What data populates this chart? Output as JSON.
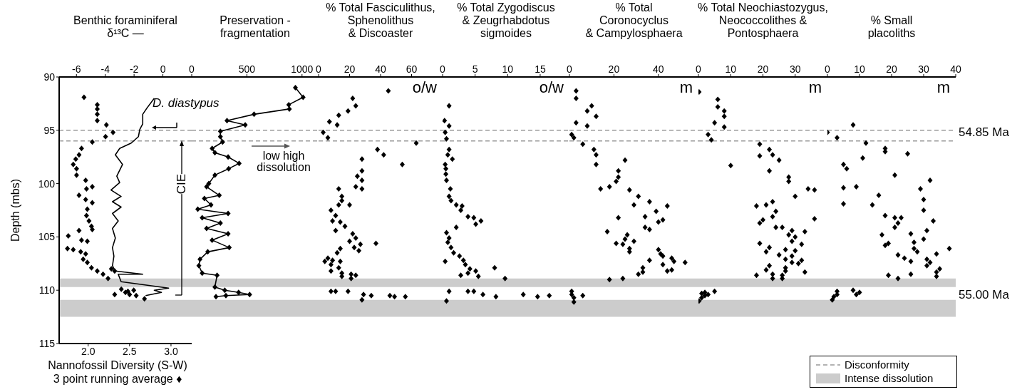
{
  "chart_data": [
    {
      "type": "scatter",
      "x2label": "Benthic foraminiferal\nδ¹³C —",
      "xlabel": "Nannofossil Diversity (S-W)\n3 point running average ♦",
      "ylabel": "Depth (mbs)",
      "xlim": [
        1.65,
        3.25
      ],
      "xticks": [
        {
          "value": 2,
          "label": "2.0"
        },
        {
          "value": 2.5,
          "label": "2.5"
        },
        {
          "value": 3,
          "label": "3.0"
        }
      ],
      "x2lim": [
        -7.2,
        2
      ],
      "x2ticks": [
        -6,
        -4,
        -2,
        0
      ],
      "ylim": [
        115,
        90
      ],
      "yticks": [
        90,
        95,
        100,
        105,
        110,
        115
      ],
      "marker": "diamond",
      "series": [
        {
          "color": "#000000",
          "x": [
            1.95,
            2.11,
            2.11,
            2.11,
            2.11,
            2.22,
            2.3,
            2.21,
            2.05,
            1.92,
            1.89,
            1.85,
            1.82,
            1.86,
            1.86,
            1.97,
            1.98,
            2.05,
            1.89,
            1.97,
            2.05,
            1.99,
            1.98,
            2.01,
            2.04,
            2.05,
            1.89,
            1.76,
            1.92,
            1.99,
            1.75,
            1.82,
            1.91,
            1.97,
            1.94,
            1.99,
            2.04,
            2.11,
            2.18,
            2.24,
            2.28,
            2.32,
            2.32,
            2.4,
            2.45,
            2.5,
            2.55,
            2.58,
            2.48,
            2.68
          ],
          "values": [
            91.9,
            92.6,
            93.0,
            93.5,
            94.1,
            94.5,
            95.2,
            95.6,
            96.1,
            96.7,
            97.3,
            97.7,
            98.2,
            98.6,
            99.2,
            99.7,
            100.5,
            100.3,
            101.1,
            101.5,
            101.8,
            102.4,
            103.0,
            103.5,
            104.0,
            104.3,
            104.4,
            104.9,
            105.3,
            105.4,
            106.1,
            106.2,
            106.4,
            106.6,
            107.1,
            107.4,
            107.9,
            108.2,
            108.5,
            108.9,
            108.0,
            108.2,
            110.4,
            109.9,
            110.2,
            110.4,
            110.0,
            110.5,
            110.1,
            110.8
          ]
        },
        {
          "type": "line",
          "axis": "x2",
          "marker": "none",
          "color": "#000000",
          "x": [
            -0.6,
            -1.1,
            -1.4,
            -1.4,
            -1.6,
            -1.7,
            -2.2,
            -3.0,
            -3.3,
            -2.8,
            -3.2,
            -3.0,
            -3.6,
            -2.9,
            -3.5,
            -2.9,
            -3.5,
            -3.1,
            -3.5,
            -3.3,
            -3.5,
            -3.4,
            -3.5,
            -3.3,
            -1.4,
            -3.1,
            -2.9,
            0.4,
            -0.6,
            -0.1,
            -1.2
          ],
          "values": [
            92.0,
            92.9,
            93.5,
            94.4,
            94.9,
            95.6,
            96.2,
            96.7,
            97.3,
            98.2,
            99.3,
            99.9,
            100.6,
            101.2,
            101.7,
            102.2,
            102.8,
            103.5,
            104.2,
            105.1,
            106.0,
            106.8,
            107.7,
            108.2,
            108.5,
            108.5,
            109.2,
            109.8,
            110.0,
            110.2,
            110.5
          ]
        }
      ],
      "ref_lines": [
        {
          "axis": "y",
          "value": 95,
          "color": "#999999",
          "line_style": "dashed"
        },
        {
          "axis": "y",
          "value": 96,
          "color": "#999999",
          "line_style": "dashed"
        }
      ],
      "bands": [
        {
          "axis": "y",
          "from": 108.9,
          "to": 109.7,
          "color": "#cccccc"
        },
        {
          "axis": "y",
          "from": 110.9,
          "to": 112.5,
          "color": "#cccccc"
        }
      ],
      "annotations": [
        "D. diastypus",
        "CIE"
      ]
    },
    {
      "type": "line",
      "title": "Preservation -\nfragmentation",
      "xlim": [
        0,
        1150
      ],
      "xticks": [
        0,
        500,
        1000
      ],
      "ylim": [
        115,
        90
      ],
      "tick_labels": "x",
      "marker": "diamond",
      "series": [
        {
          "color": "#000000",
          "x": [
            940,
            1010,
            880,
            885,
            565,
            320,
            485,
            260,
            260,
            280,
            185,
            210,
            330,
            430,
            335,
            210,
            155,
            135,
            250,
            115,
            175,
            55,
            330,
            95,
            260,
            135,
            330,
            185,
            340,
            145,
            75,
            65,
            95,
            230,
            210,
            300,
            425,
            525,
            310,
            220
          ],
          "values": [
            91.0,
            91.9,
            92.6,
            93.0,
            93.5,
            94.1,
            94.5,
            95.1,
            95.6,
            96.1,
            96.7,
            97.1,
            97.5,
            98.1,
            98.6,
            99.2,
            100.0,
            100.3,
            101.1,
            101.4,
            102.0,
            102.4,
            102.8,
            103.2,
            103.7,
            104.2,
            104.7,
            105.3,
            106.0,
            106.4,
            107.1,
            107.7,
            108.4,
            108.6,
            109.7,
            110.0,
            110.2,
            110.4,
            110.5,
            110.6
          ]
        }
      ],
      "ref_lines": [
        {
          "axis": "y",
          "value": 95,
          "color": "#999999",
          "line_style": "dashed"
        },
        {
          "axis": "y",
          "value": 96,
          "color": "#999999",
          "line_style": "dashed"
        }
      ],
      "bands": [
        {
          "axis": "y",
          "from": 108.9,
          "to": 109.7,
          "color": "#cccccc"
        },
        {
          "axis": "y",
          "from": 110.9,
          "to": 112.5,
          "color": "#cccccc"
        }
      ],
      "annotations": [
        "low high\ndissolution"
      ]
    },
    {
      "type": "scatter",
      "title": "% Total Fasciculithus,\nSphenolithus\n& Discoaster",
      "xlim": [
        0,
        80
      ],
      "xticks": [
        0,
        20,
        40,
        60
      ],
      "ylim": [
        115,
        90
      ],
      "tick_labels": "x",
      "marker": "diamond",
      "series": [
        {
          "color": "#000000",
          "x": [
            45,
            22,
            24,
            19,
            13,
            7,
            12,
            3,
            6,
            63,
            38,
            42,
            28,
            54,
            28,
            25,
            28,
            24,
            28,
            13,
            15,
            15,
            20,
            13,
            8,
            11,
            9,
            14,
            17,
            11,
            22,
            24,
            20,
            37,
            27,
            23,
            14,
            26,
            12,
            6,
            9,
            4,
            14,
            8,
            13,
            8,
            15,
            21,
            24,
            15,
            21,
            11,
            8,
            19,
            29,
            34,
            46,
            49,
            56,
            28
          ],
          "values": [
            91.3,
            92.0,
            92.7,
            93.2,
            93.6,
            94.2,
            94.5,
            95.2,
            95.7,
            96.2,
            96.8,
            97.3,
            97.7,
            98.2,
            98.8,
            99.3,
            99.7,
            100.3,
            100.5,
            100.5,
            101.2,
            101.6,
            102.0,
            102.0,
            102.5,
            103.0,
            103.5,
            103.6,
            104.0,
            104.4,
            104.7,
            105.1,
            105.4,
            105.6,
            105.7,
            106.0,
            106.1,
            106.3,
            106.5,
            107.0,
            107.2,
            107.3,
            107.3,
            107.6,
            107.9,
            108.2,
            108.4,
            108.5,
            108.6,
            108.7,
            108.9,
            110.1,
            110.1,
            110.1,
            110.4,
            110.5,
            110.5,
            110.6,
            110.6,
            110.9
          ]
        }
      ],
      "ref_lines": [
        {
          "axis": "y",
          "value": 95,
          "color": "#999999",
          "line_style": "dashed"
        },
        {
          "axis": "y",
          "value": 96,
          "color": "#999999",
          "line_style": "dashed"
        }
      ],
      "bands": [
        {
          "axis": "y",
          "from": 108.9,
          "to": 109.7,
          "color": "#cccccc"
        },
        {
          "axis": "y",
          "from": 110.9,
          "to": 112.5,
          "color": "#cccccc"
        }
      ],
      "annotations": [
        "o/w"
      ]
    },
    {
      "type": "scatter",
      "title": "% Total Zygodiscus\n& Zeugrhabdotus\nsigmoides",
      "xlim": [
        0,
        19.5
      ],
      "xticks": [
        0,
        5,
        10,
        15
      ],
      "ylim": [
        115,
        90
      ],
      "tick_labels": "x",
      "marker": "diamond",
      "series": [
        {
          "color": "#000000",
          "x": [
            1.0,
            0.3,
            1.0,
            0.4,
            0.6,
            1.0,
            0.8,
            1.5,
            0.4,
            0.5,
            0.5,
            0.6,
            1.2,
            1.0,
            1.3,
            2.1,
            3.0,
            2.8,
            3.9,
            4.8,
            5.9,
            5.1,
            2.1,
            0.6,
            1.0,
            0.8,
            1.3,
            1.7,
            2.6,
            3.2,
            3.5,
            4.2,
            5.1,
            3.9,
            2.8,
            5.5,
            8.0,
            9.6,
            0.4,
            1.0,
            3.9,
            4.8,
            6.2,
            8.2,
            12.4,
            14.6,
            16.4,
            0.6
          ],
          "values": [
            92.7,
            94.1,
            94.6,
            95.2,
            95.8,
            96.8,
            97.3,
            97.7,
            98.2,
            98.6,
            99.1,
            99.7,
            100.5,
            101.2,
            101.6,
            102.0,
            102.1,
            102.5,
            103.1,
            103.2,
            103.5,
            103.8,
            104.1,
            104.6,
            105.1,
            105.5,
            106.0,
            106.5,
            106.8,
            107.2,
            107.6,
            108.0,
            108.2,
            108.4,
            108.6,
            108.7,
            107.9,
            108.9,
            107.3,
            110.1,
            110.1,
            110.1,
            110.4,
            110.6,
            110.4,
            110.6,
            110.5,
            111.0
          ]
        }
      ],
      "ref_lines": [
        {
          "axis": "y",
          "value": 95,
          "color": "#999999",
          "line_style": "dashed"
        },
        {
          "axis": "y",
          "value": 96,
          "color": "#999999",
          "line_style": "dashed"
        }
      ],
      "bands": [
        {
          "axis": "y",
          "from": 108.9,
          "to": 109.7,
          "color": "#cccccc"
        },
        {
          "axis": "y",
          "from": 110.9,
          "to": 112.5,
          "color": "#cccccc"
        }
      ],
      "annotations": [
        "o/w"
      ]
    },
    {
      "type": "scatter",
      "title": "% Total\nCoronocyclus\n& Campylosphaera",
      "xlim": [
        0,
        58
      ],
      "xticks": [
        0,
        20,
        40
      ],
      "ylim": [
        115,
        90
      ],
      "tick_labels": "x",
      "marker": "diamond",
      "series": [
        {
          "color": "#000000",
          "x": [
            3,
            3,
            10,
            8,
            12,
            3,
            8,
            1,
            2,
            6,
            11,
            12,
            12,
            25,
            22,
            22,
            21,
            18,
            14,
            27,
            31,
            36,
            29,
            39,
            34,
            22,
            40,
            34,
            36,
            17,
            26,
            25,
            29,
            21,
            24,
            27,
            27,
            40,
            41,
            36,
            33,
            31,
            33,
            18,
            24,
            42,
            44,
            42,
            42,
            46,
            47,
            52,
            46,
            44,
            1,
            1,
            2,
            2,
            6
          ],
          "values": [
            91.3,
            92.0,
            92.7,
            93.2,
            93.7,
            94.3,
            94.6,
            95.4,
            95.7,
            96.3,
            96.8,
            97.3,
            98.2,
            97.8,
            98.8,
            99.4,
            99.8,
            100.3,
            100.5,
            100.6,
            101.2,
            101.7,
            102.0,
            102.6,
            103.1,
            103.2,
            103.6,
            104.1,
            104.3,
            104.5,
            104.8,
            105.2,
            105.4,
            105.6,
            105.7,
            106.1,
            106.4,
            106.2,
            106.6,
            107.2,
            107.9,
            108.5,
            108.3,
            109.0,
            108.9,
            107.6,
            102.1,
            103.4,
            106.8,
            107.0,
            107.3,
            107.4,
            108.1,
            108.2,
            110.4,
            110.1,
            110.7,
            111.1,
            110.5
          ]
        }
      ],
      "ref_lines": [
        {
          "axis": "y",
          "value": 95,
          "color": "#999999",
          "line_style": "dashed"
        },
        {
          "axis": "y",
          "value": 96,
          "color": "#999999",
          "line_style": "dashed"
        }
      ],
      "bands": [
        {
          "axis": "y",
          "from": 108.9,
          "to": 109.7,
          "color": "#cccccc"
        },
        {
          "axis": "y",
          "from": 110.9,
          "to": 112.5,
          "color": "#cccccc"
        }
      ],
      "annotations": [
        "m"
      ]
    },
    {
      "type": "scatter",
      "title": "% Total Neochiastozygus,\nNeococcolithes &\nPontosphaera",
      "xlim": [
        0,
        40
      ],
      "xticks": [
        0,
        10,
        20,
        30
      ],
      "ylim": [
        115,
        90
      ],
      "tick_labels": "x",
      "marker": "diamond",
      "series": [
        {
          "color": "#000000",
          "x": [
            0.2,
            6,
            6,
            8,
            8,
            5,
            8,
            3,
            4,
            10,
            19,
            22,
            23,
            19,
            25,
            22,
            28,
            28,
            34,
            36,
            30,
            23,
            21,
            18,
            24,
            23,
            20,
            19,
            24,
            26,
            36,
            29,
            33,
            28,
            30,
            29,
            19,
            32,
            22,
            27,
            30,
            21,
            25,
            29,
            27,
            32,
            29,
            31,
            22,
            27,
            21,
            27,
            33,
            23,
            26,
            18,
            23,
            26,
            1,
            5,
            2,
            0.2,
            2,
            3,
            1
          ],
          "values": [
            91.4,
            92.1,
            92.8,
            93.2,
            93.7,
            94.3,
            94.7,
            95.4,
            95.9,
            98.3,
            96.3,
            96.8,
            97.3,
            97.4,
            97.8,
            98.8,
            99.4,
            99.8,
            100.5,
            100.6,
            101.2,
            101.7,
            102.0,
            102.1,
            102.6,
            103.1,
            103.4,
            103.7,
            104.1,
            104.1,
            103.3,
            104.4,
            104.5,
            104.8,
            105.0,
            105.4,
            105.6,
            105.7,
            106.0,
            106.2,
            106.3,
            106.4,
            106.7,
            106.8,
            107.1,
            107.2,
            107.4,
            107.5,
            107.7,
            107.9,
            108.1,
            108.2,
            108.3,
            108.5,
            108.6,
            108.6,
            108.9,
            108.9,
            110.3,
            110.1,
            110.5,
            111.0,
            110.2,
            110.4,
            110.7
          ]
        }
      ],
      "ref_lines": [
        {
          "axis": "y",
          "value": 95,
          "color": "#999999",
          "line_style": "dashed"
        },
        {
          "axis": "y",
          "value": 96,
          "color": "#999999",
          "line_style": "dashed"
        }
      ],
      "bands": [
        {
          "axis": "y",
          "from": 108.9,
          "to": 109.7,
          "color": "#cccccc"
        },
        {
          "axis": "y",
          "from": 110.9,
          "to": 112.5,
          "color": "#cccccc"
        }
      ],
      "annotations": [
        "m"
      ]
    },
    {
      "type": "scatter",
      "title": "% Small\nplacoliths",
      "xlim": [
        0,
        40
      ],
      "xticks": [
        0,
        10,
        20,
        30,
        40
      ],
      "ylim": [
        115,
        90
      ],
      "tick_labels": "x",
      "marker": "diamond",
      "legend": "bottom",
      "series": [
        {
          "color": "#000000",
          "x": [
            8,
            0,
            3,
            12,
            18,
            18,
            25,
            11,
            5,
            6,
            21,
            32,
            29,
            5,
            9,
            30,
            16,
            5,
            14,
            30,
            18,
            21,
            23,
            22,
            21,
            33,
            31,
            17,
            26,
            30,
            27,
            19,
            18,
            27,
            38,
            28,
            34,
            22,
            24,
            31,
            26,
            32,
            31,
            35,
            34,
            34,
            19,
            22,
            26,
            1.5,
            3,
            3,
            8,
            9,
            10,
            2
          ],
          "values": [
            94.5,
            95.2,
            95.7,
            96.2,
            96.7,
            97.0,
            97.2,
            97.6,
            98.2,
            98.6,
            99.2,
            99.7,
            100.5,
            100.4,
            100.3,
            101.5,
            101.1,
            101.9,
            102.0,
            102.5,
            103.0,
            103.2,
            103.2,
            103.7,
            104.1,
            103.5,
            104.4,
            104.8,
            104.7,
            105.2,
            105.5,
            105.6,
            105.8,
            106.1,
            106.1,
            106.4,
            106.6,
            106.7,
            107.0,
            107.1,
            107.3,
            107.4,
            107.7,
            108.0,
            108.3,
            108.7,
            108.6,
            108.9,
            108.5,
            110.9,
            110.4,
            110.1,
            110.0,
            110.4,
            110.2,
            110.6
          ]
        }
      ],
      "ref_lines": [
        {
          "axis": "y",
          "value": 95,
          "color": "#999999",
          "line_style": "dashed",
          "label": "Disconformity"
        },
        {
          "axis": "y",
          "value": 96,
          "color": "#999999",
          "line_style": "dashed"
        }
      ],
      "bands": [
        {
          "axis": "y",
          "from": 108.9,
          "to": 109.7,
          "color": "#cccccc",
          "label": "Intense dissolution"
        },
        {
          "axis": "y",
          "from": 110.9,
          "to": 112.5,
          "color": "#cccccc"
        }
      ],
      "annotations": [
        "m",
        "54.85 Ma",
        "55.00 Ma"
      ]
    }
  ]
}
